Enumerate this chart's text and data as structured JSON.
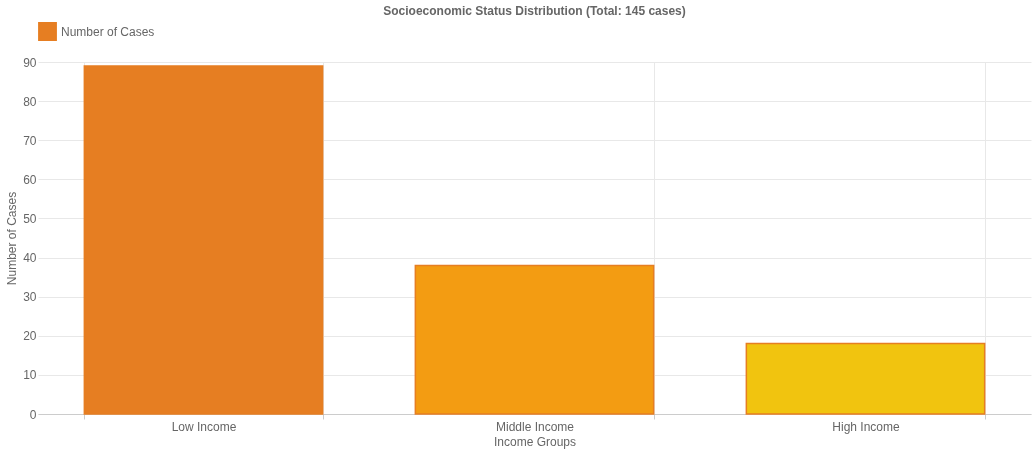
{
  "chart_data": {
    "type": "bar",
    "title": "Socioeconomic Status Distribution (Total: 145 cases)",
    "xlabel": "Income Groups",
    "ylabel": "Number of Cases",
    "categories": [
      "Low Income",
      "Middle Income",
      "High Income"
    ],
    "series": [
      {
        "name": "Number of Cases",
        "color": "#e67e22",
        "colors": [
          "#e67e22",
          "#f39c12",
          "#f1c40f"
        ],
        "values": [
          89,
          38,
          18
        ]
      }
    ],
    "ylim": [
      0,
      90
    ],
    "yticks": [
      0,
      10,
      20,
      30,
      40,
      50,
      60,
      70,
      80,
      90
    ],
    "grid": true,
    "legend": "top"
  }
}
